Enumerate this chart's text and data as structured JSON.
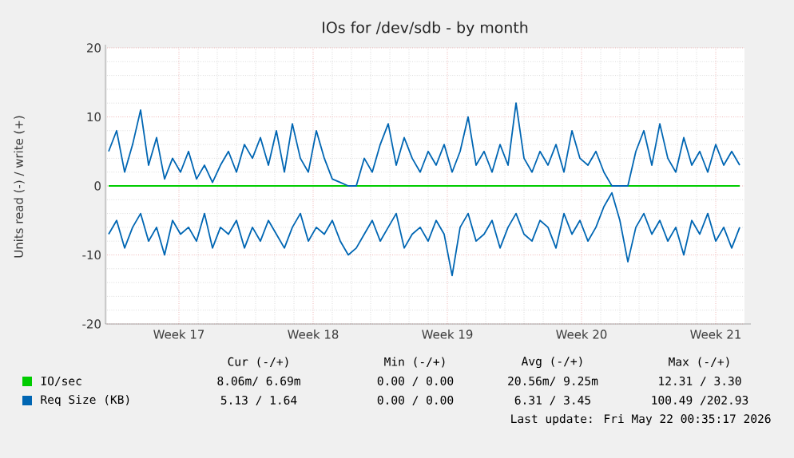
{
  "chart_data": {
    "type": "line",
    "title": "IOs for /dev/sdb - by month",
    "ylabel": "Units read (-) / write (+)",
    "x": [
      "2026-04-19T20:00",
      "2026-04-20T06:00",
      "2026-04-20T16:00",
      "2026-04-21T02:00",
      "2026-04-21T12:00",
      "2026-04-21T22:00",
      "2026-04-22T08:00",
      "2026-04-22T18:00",
      "2026-04-23T04:00",
      "2026-04-23T14:00",
      "2026-04-24T00:00",
      "2026-04-24T10:00",
      "2026-04-24T20:00",
      "2026-04-25T06:00",
      "2026-04-25T16:00",
      "2026-04-26T02:00",
      "2026-04-26T12:00",
      "2026-04-26T22:00",
      "2026-04-27T08:00",
      "2026-04-27T18:00",
      "2026-04-28T04:00",
      "2026-04-28T14:00",
      "2026-04-29T00:00",
      "2026-04-29T10:00",
      "2026-04-29T20:00",
      "2026-04-30T06:00",
      "2026-04-30T16:00",
      "2026-05-01T02:00",
      "2026-05-01T12:00",
      "2026-05-01T22:00",
      "2026-05-02T08:00",
      "2026-05-02T18:00",
      "2026-05-03T04:00",
      "2026-05-03T14:00",
      "2026-05-04T00:00",
      "2026-05-04T10:00",
      "2026-05-04T20:00",
      "2026-05-05T06:00",
      "2026-05-05T16:00",
      "2026-05-06T02:00",
      "2026-05-06T12:00",
      "2026-05-06T22:00",
      "2026-05-07T08:00",
      "2026-05-07T18:00",
      "2026-05-08T04:00",
      "2026-05-08T14:00",
      "2026-05-09T00:00",
      "2026-05-09T10:00",
      "2026-05-09T20:00",
      "2026-05-10T06:00",
      "2026-05-10T16:00",
      "2026-05-11T02:00",
      "2026-05-11T12:00",
      "2026-05-11T22:00",
      "2026-05-12T08:00",
      "2026-05-12T18:00",
      "2026-05-13T04:00",
      "2026-05-13T14:00",
      "2026-05-14T00:00",
      "2026-05-14T10:00",
      "2026-05-14T20:00",
      "2026-05-15T06:00",
      "2026-05-15T16:00",
      "2026-05-16T02:00",
      "2026-05-16T12:00",
      "2026-05-16T22:00",
      "2026-05-17T08:00",
      "2026-05-17T18:00",
      "2026-05-18T04:00",
      "2026-05-18T14:00",
      "2026-05-19T00:00",
      "2026-05-19T10:00",
      "2026-05-19T20:00",
      "2026-05-20T06:00",
      "2026-05-20T16:00",
      "2026-05-21T02:00",
      "2026-05-21T12:00",
      "2026-05-21T22:00",
      "2026-05-22T08:00",
      "2026-05-22T18:00"
    ],
    "xlim": [
      "2026-04-19T18:00",
      "2026-05-23T00:00"
    ],
    "xticks": [
      {
        "value": "2026-04-23T12:00",
        "label": "Week 17"
      },
      {
        "value": "2026-04-30T12:00",
        "label": "Week 18"
      },
      {
        "value": "2026-05-07T12:00",
        "label": "Week 19"
      },
      {
        "value": "2026-05-14T12:00",
        "label": "Week 20"
      },
      {
        "value": "2026-05-21T12:00",
        "label": "Week 21"
      }
    ],
    "ylim": [
      -20,
      20
    ],
    "yticks": [
      -20,
      -10,
      0,
      10,
      20
    ],
    "grid": true,
    "legend": "bottom",
    "series": [
      {
        "name": "IO/sec",
        "color": "#00cc00",
        "x": [
          "2026-04-19T20:00",
          "2026-05-22T18:00"
        ],
        "values": [
          0,
          0
        ]
      },
      {
        "name": "Req Size (KB)",
        "color": "#0066b3",
        "values": [
          5,
          8,
          2,
          6,
          11,
          3,
          7,
          1,
          4,
          2,
          5,
          1,
          3,
          0.5,
          3,
          5,
          2,
          6,
          4,
          7,
          3,
          8,
          2,
          9,
          4,
          2,
          8,
          4,
          1,
          0.5,
          0,
          0,
          4,
          2,
          6,
          9,
          3,
          7,
          4,
          2,
          5,
          3,
          6,
          2,
          5,
          10,
          3,
          5,
          2,
          6,
          3,
          12,
          4,
          2,
          5,
          3,
          6,
          2,
          8,
          4,
          3,
          5,
          2,
          0,
          0,
          0,
          5,
          8,
          3,
          9,
          4,
          2,
          7,
          3,
          5,
          2,
          6,
          3,
          5,
          3
        ]
      },
      {
        "color": "#0066b3",
        "values": [
          -7,
          -5,
          -9,
          -6,
          -4,
          -8,
          -6,
          -10,
          -5,
          -7,
          -6,
          -8,
          -4,
          -9,
          -6,
          -7,
          -5,
          -9,
          -6,
          -8,
          -5,
          -7,
          -9,
          -6,
          -4,
          -8,
          -6,
          -7,
          -5,
          -8,
          -10,
          -9,
          -7,
          -5,
          -8,
          -6,
          -4,
          -9,
          -7,
          -6,
          -8,
          -5,
          -7,
          -13,
          -6,
          -4,
          -8,
          -7,
          -5,
          -9,
          -6,
          -4,
          -7,
          -8,
          -5,
          -6,
          -9,
          -4,
          -7,
          -5,
          -8,
          -6,
          -3,
          -1,
          -5,
          -11,
          -6,
          -4,
          -7,
          -5,
          -8,
          -6,
          -10,
          -5,
          -7,
          -4,
          -8,
          -6,
          -9,
          -6
        ]
      }
    ],
    "annotations": [
      "Cur (-/+)",
      "Min (-/+)",
      "Avg (-/+)",
      "Max (-/+)",
      "8.06m/ 6.69m",
      "0.00 / 0.00",
      "20.56m/ 9.25m",
      "12.31 / 3.30",
      "5.13 / 1.64",
      "0.00 / 0.00",
      "6.31 / 3.45",
      "100.49 /202.93",
      "Last update: Fri May 22 00:35:17 2026"
    ]
  }
}
